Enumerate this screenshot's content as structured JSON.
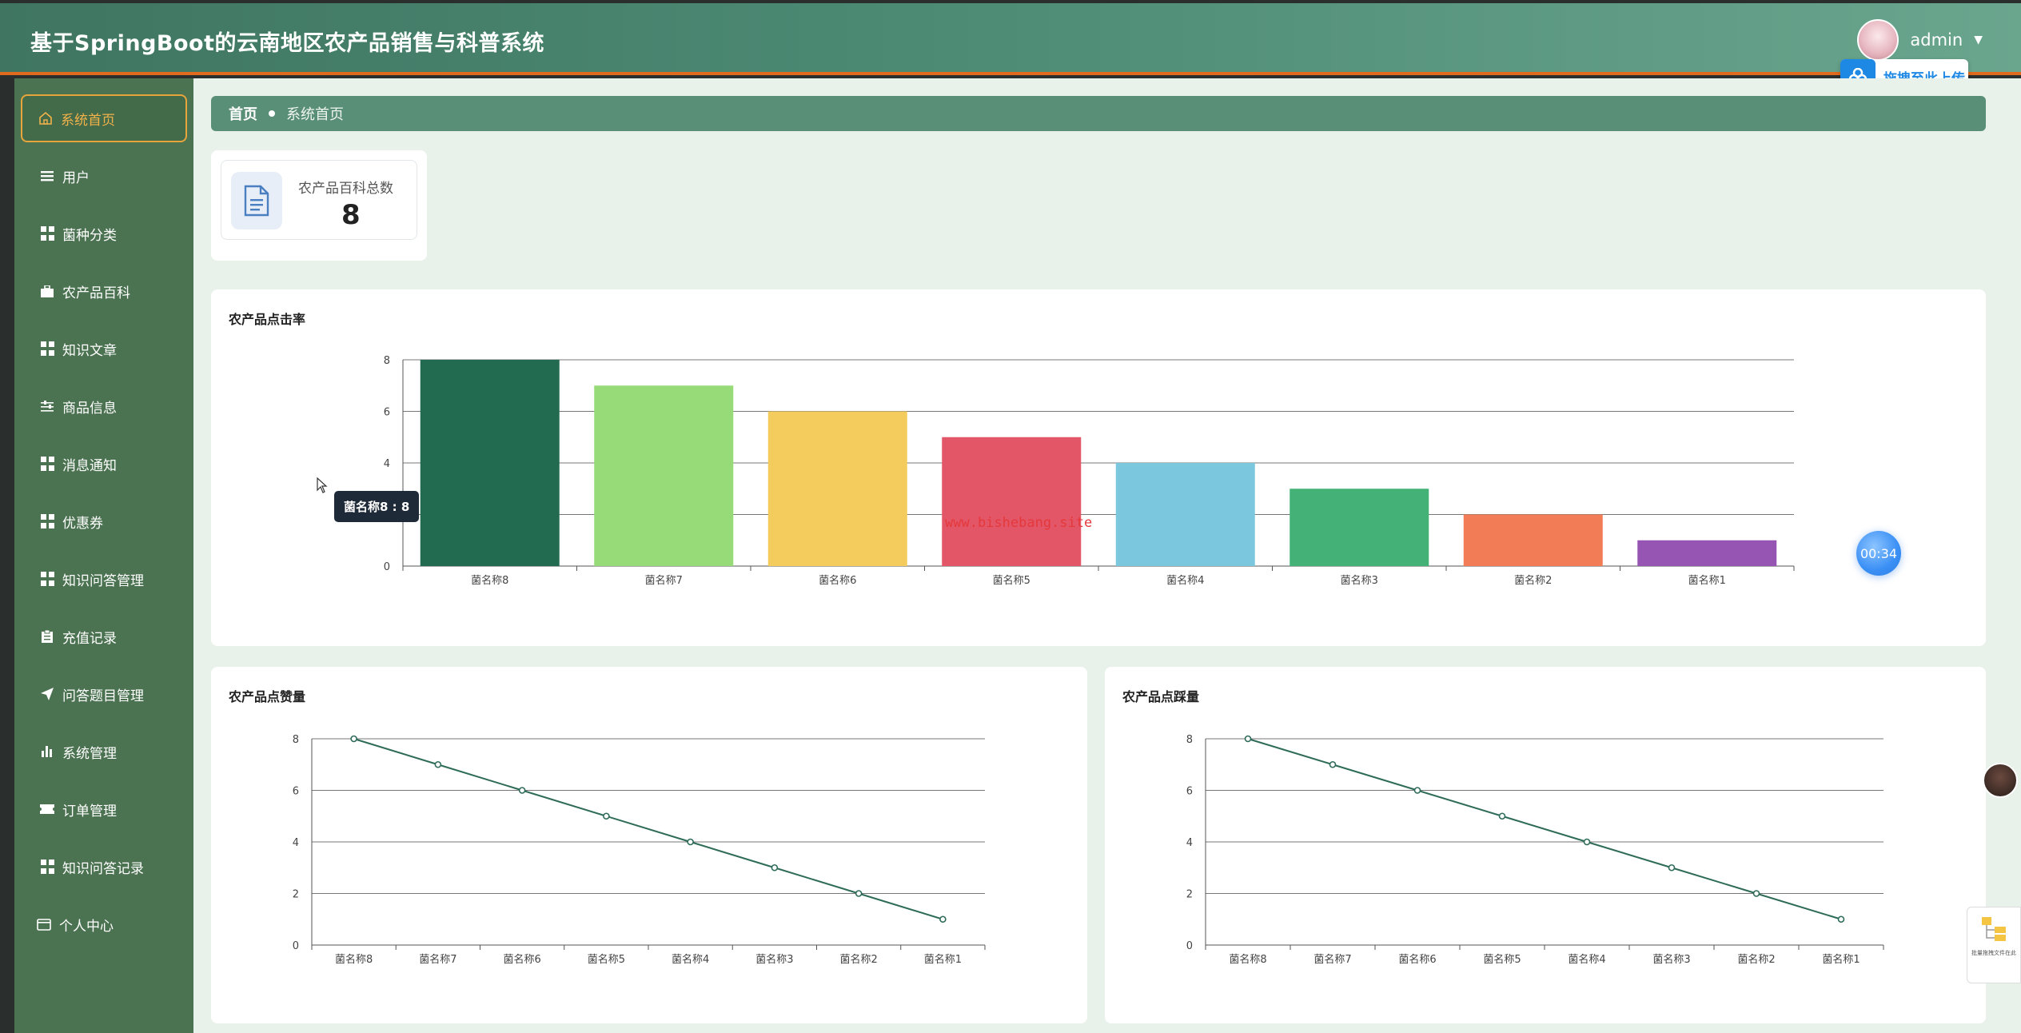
{
  "header": {
    "title": "基于SpringBoot的云南地区农产品销售与科普系统",
    "username": "admin",
    "upload_label": "拖拽至此上传"
  },
  "sidebar": {
    "items": [
      {
        "label": "系统首页",
        "icon": "home-icon",
        "active": true
      },
      {
        "label": "用户",
        "icon": "list-icon"
      },
      {
        "label": "菌种分类",
        "icon": "grid-icon"
      },
      {
        "label": "农产品百科",
        "icon": "briefcase-icon"
      },
      {
        "label": "知识文章",
        "icon": "grid-icon"
      },
      {
        "label": "商品信息",
        "icon": "sliders-icon"
      },
      {
        "label": "消息通知",
        "icon": "grid-icon"
      },
      {
        "label": "优惠券",
        "icon": "grid-icon"
      },
      {
        "label": "知识问答管理",
        "icon": "grid-icon"
      },
      {
        "label": "充值记录",
        "icon": "clipboard-icon"
      },
      {
        "label": "问答题目管理",
        "icon": "send-icon"
      },
      {
        "label": "系统管理",
        "icon": "bar-chart-icon"
      },
      {
        "label": "订单管理",
        "icon": "ticket-icon"
      },
      {
        "label": "知识问答记录",
        "icon": "grid-icon"
      },
      {
        "label": "个人中心",
        "icon": "card-icon"
      }
    ]
  },
  "breadcrumb": {
    "home": "首页",
    "current": "系统首页"
  },
  "stats": {
    "label": "农产品百科总数",
    "value": "8"
  },
  "tooltip": "菌名称8 : 8",
  "watermark": "www.bishebang.site",
  "timer": "00:34",
  "side_widget_label": "批量拖拽文件在此",
  "colors": {
    "header": "#4c8a74",
    "sidebar": "#4b7351",
    "active_border": "#e7a53c",
    "accent_orange": "#e06a1d",
    "line": "#2e6b58"
  },
  "chart_data": [
    {
      "type": "bar",
      "title": "农产品点击率",
      "categories": [
        "菌名称8",
        "菌名称7",
        "菌名称6",
        "菌名称5",
        "菌名称4",
        "菌名称3",
        "菌名称2",
        "菌名称1"
      ],
      "values": [
        8,
        7,
        6,
        5,
        4,
        3,
        2,
        1
      ],
      "bar_colors": [
        "#236b50",
        "#97db78",
        "#f4cc5d",
        "#e35667",
        "#7ac7de",
        "#44b277",
        "#f17c56",
        "#9655b3"
      ],
      "ylim": [
        0,
        8
      ],
      "yticks": [
        0,
        2,
        4,
        6,
        8
      ],
      "grid": true
    },
    {
      "type": "line",
      "title": "农产品点赞量",
      "categories": [
        "菌名称8",
        "菌名称7",
        "菌名称6",
        "菌名称5",
        "菌名称4",
        "菌名称3",
        "菌名称2",
        "菌名称1"
      ],
      "values": [
        8,
        7,
        6,
        5,
        4,
        3,
        2,
        1
      ],
      "ylim": [
        0,
        8
      ],
      "yticks": [
        0,
        2,
        4,
        6,
        8
      ],
      "grid": true
    },
    {
      "type": "line",
      "title": "农产品点踩量",
      "categories": [
        "菌名称8",
        "菌名称7",
        "菌名称6",
        "菌名称5",
        "菌名称4",
        "菌名称3",
        "菌名称2",
        "菌名称1"
      ],
      "values": [
        8,
        7,
        6,
        5,
        4,
        3,
        2,
        1
      ],
      "ylim": [
        0,
        8
      ],
      "yticks": [
        0,
        2,
        4,
        6,
        8
      ],
      "grid": true
    }
  ]
}
